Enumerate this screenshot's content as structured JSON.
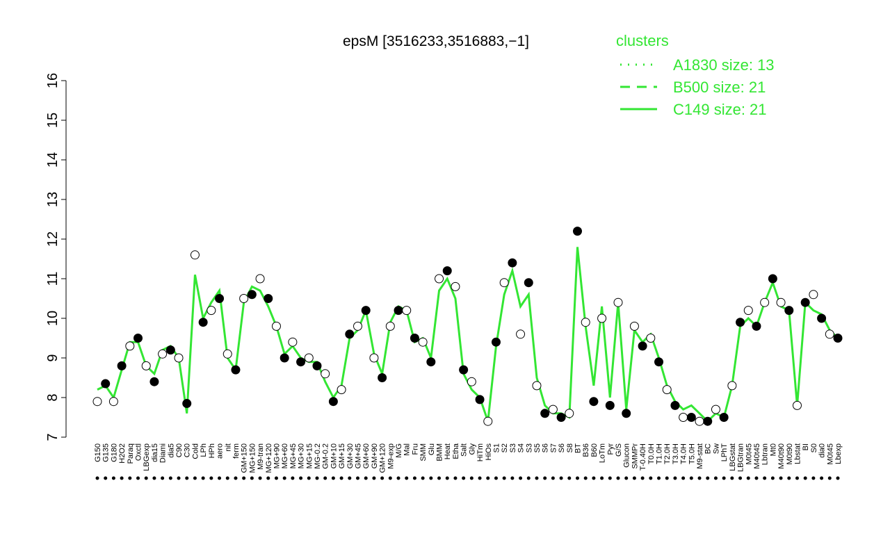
{
  "chart_data": {
    "type": "line",
    "title": "epsM [3516233,3516883,−1]",
    "categories": [
      "G150",
      "G135",
      "G180",
      "H2O2",
      "Paraq",
      "Oxctl",
      "LBGexp",
      "dia15",
      "Diami",
      "dia5",
      "C90",
      "C30",
      "Cold",
      "LPh",
      "HPh",
      "aero",
      "nit",
      "ferm",
      "GM+150",
      "MG+150",
      "M9-tran",
      "MG+120",
      "MG+90",
      "MG+60",
      "MG+45",
      "MG+30",
      "MG+15",
      "MG-0.2",
      "GM-0.2",
      "GM+10",
      "GM+15",
      "GM+30",
      "GM+45",
      "GM+60",
      "GM+90",
      "GM+120",
      "M9-exp",
      "M/G",
      "Mal",
      "Fru",
      "SMM",
      "Glu",
      "BMM",
      "Heat",
      "Etha",
      "Salt",
      "Gly",
      "HiTm",
      "HiOs",
      "S1",
      "S2",
      "S3",
      "S4",
      "S3",
      "S5",
      "S6",
      "S7",
      "S6",
      "S8",
      "BT",
      "B36",
      "B60",
      "LoTm",
      "Pyr",
      "G/S",
      "Glucon",
      "SMMPr",
      "T-0.40H",
      "T0.0H",
      "T1.0H",
      "T2.0H",
      "T3.0H",
      "T4.0H",
      "T5.0H",
      "M9-stat",
      "BC",
      "Sw",
      "LPhT",
      "LBGstat",
      "LBGtran",
      "M0t45",
      "M40t45",
      "Lbtran",
      "Mt0",
      "M40t90",
      "M0t90",
      "Lbstat",
      "BI",
      "S0",
      "dia0",
      "M0t45",
      "Lbexp"
    ],
    "points": [
      7.9,
      8.35,
      7.9,
      8.8,
      9.3,
      9.5,
      8.8,
      8.4,
      9.1,
      9.2,
      9.0,
      7.85,
      11.6,
      9.9,
      10.2,
      10.5,
      9.1,
      8.7,
      10.5,
      10.6,
      11.0,
      10.5,
      9.8,
      9.0,
      9.4,
      8.9,
      9.0,
      8.8,
      8.6,
      7.9,
      8.2,
      9.6,
      9.8,
      10.2,
      9.0,
      8.5,
      9.8,
      10.2,
      10.2,
      9.5,
      9.4,
      8.9,
      11.0,
      11.2,
      10.8,
      8.7,
      8.4,
      7.95,
      7.4,
      9.4,
      10.9,
      11.4,
      9.6,
      10.9,
      8.3,
      7.6,
      7.7,
      7.5,
      7.6,
      12.2,
      9.9,
      7.9,
      10.0,
      7.8,
      10.4,
      7.6,
      9.8,
      9.3,
      9.5,
      8.9,
      8.2,
      7.8,
      7.5,
      7.5,
      7.4,
      7.4,
      7.7,
      7.5,
      8.3,
      9.9,
      10.2,
      9.8,
      10.4,
      11.0,
      10.4,
      10.2,
      7.8,
      10.4,
      10.6,
      10.0,
      9.6,
      9.5
    ],
    "series": [
      {
        "name": "C149 size: 21",
        "color": "#33e633",
        "values": [
          8.2,
          8.3,
          8.0,
          8.7,
          9.4,
          9.4,
          8.8,
          8.6,
          9.2,
          9.3,
          9.0,
          7.6,
          11.1,
          10.0,
          10.4,
          10.7,
          9.0,
          8.7,
          10.4,
          10.8,
          10.7,
          10.3,
          9.8,
          9.1,
          9.3,
          9.0,
          8.9,
          8.9,
          8.4,
          8.0,
          8.3,
          9.5,
          9.7,
          10.2,
          9.1,
          8.6,
          9.9,
          10.3,
          10.2,
          9.4,
          9.5,
          9.0,
          10.7,
          11.0,
          10.5,
          8.6,
          8.2,
          8.0,
          7.4,
          9.3,
          10.6,
          11.2,
          10.3,
          10.6,
          8.5,
          7.8,
          7.6,
          7.6,
          7.5,
          11.8,
          9.8,
          8.3,
          10.3,
          8.0,
          10.4,
          7.7,
          9.7,
          9.4,
          9.6,
          9.0,
          8.3,
          7.9,
          7.7,
          7.8,
          7.6,
          7.4,
          7.6,
          7.5,
          8.3,
          9.8,
          10.0,
          9.8,
          10.4,
          10.9,
          10.3,
          10.2,
          7.8,
          10.4,
          10.2,
          10.1,
          9.7,
          9.5
        ]
      }
    ],
    "legend_title": "clusters",
    "legend": [
      {
        "label": "A1830 size: 13",
        "dash": "dotted"
      },
      {
        "label": "B500 size: 21",
        "dash": "dashed"
      },
      {
        "label": "C149 size: 21",
        "dash": "solid"
      }
    ],
    "ylim": [
      7,
      16
    ],
    "yticks": [
      7,
      8,
      9,
      10,
      11,
      12,
      13,
      14,
      15,
      16
    ]
  }
}
